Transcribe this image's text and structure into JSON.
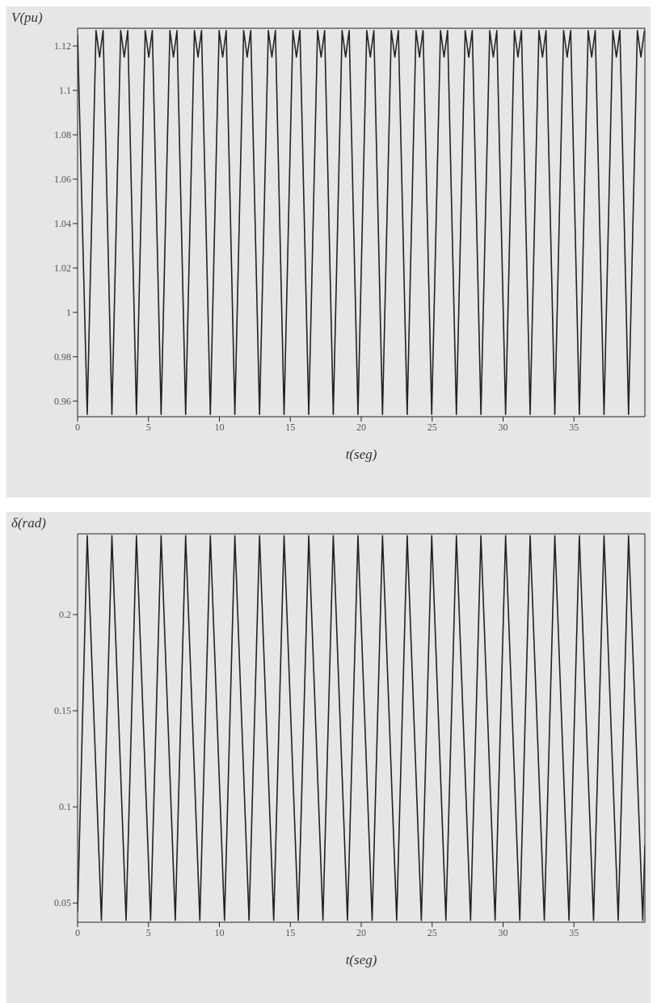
{
  "chart_data": [
    {
      "type": "line",
      "xlabel": "t(seg)",
      "ylabel": "V(pu)",
      "xlim": [
        0,
        40
      ],
      "xticks": [
        0,
        5,
        10,
        15,
        20,
        25,
        30,
        35
      ],
      "ylim": [
        0.953,
        1.128
      ],
      "yticks": [
        0.96,
        0.98,
        1,
        1.02,
        1.04,
        1.06,
        1.08,
        1.1,
        1.12
      ],
      "series": [
        {
          "color": "#222222",
          "x": [
            0,
            0.68,
            1.3,
            1.55,
            1.8,
            2.42,
            3.04,
            3.29,
            3.54,
            4.15,
            4.77,
            5.02,
            5.27,
            5.89,
            6.51,
            6.76,
            7.01,
            7.62,
            8.24,
            8.49,
            8.74,
            9.36,
            9.98,
            10.23,
            10.48,
            11.09,
            11.71,
            11.96,
            12.21,
            12.83,
            13.45,
            13.7,
            13.95,
            14.56,
            15.18,
            15.43,
            15.68,
            16.3,
            16.92,
            17.17,
            17.42,
            18.03,
            18.65,
            18.9,
            19.15,
            19.77,
            20.39,
            20.64,
            20.89,
            21.5,
            22.12,
            22.37,
            22.62,
            23.24,
            23.86,
            24.11,
            24.36,
            24.97,
            25.59,
            25.84,
            26.09,
            26.71,
            27.33,
            27.58,
            27.83,
            28.44,
            29.06,
            29.31,
            29.56,
            30.18,
            30.8,
            31.05,
            31.3,
            31.91,
            32.53,
            32.78,
            33.03,
            33.65,
            34.27,
            34.52,
            34.77,
            35.38,
            36.0,
            36.25,
            36.5,
            37.12,
            37.74,
            37.99,
            38.24,
            38.85,
            39.47,
            39.72,
            39.97
          ],
          "values": [
            1.125,
            0.954,
            1.127,
            1.115,
            1.127,
            0.954,
            1.127,
            1.115,
            1.127,
            0.954,
            1.127,
            1.115,
            1.127,
            0.954,
            1.127,
            1.115,
            1.127,
            0.954,
            1.127,
            1.115,
            1.127,
            0.954,
            1.127,
            1.115,
            1.127,
            0.954,
            1.127,
            1.115,
            1.127,
            0.954,
            1.127,
            1.115,
            1.127,
            0.954,
            1.127,
            1.115,
            1.127,
            0.954,
            1.127,
            1.115,
            1.127,
            0.954,
            1.127,
            1.115,
            1.127,
            0.954,
            1.127,
            1.115,
            1.127,
            0.954,
            1.127,
            1.115,
            1.127,
            0.954,
            1.127,
            1.115,
            1.127,
            0.954,
            1.127,
            1.115,
            1.127,
            0.954,
            1.127,
            1.115,
            1.127,
            0.954,
            1.127,
            1.115,
            1.127,
            0.954,
            1.127,
            1.115,
            1.127,
            0.954,
            1.127,
            1.115,
            1.127,
            0.954,
            1.127,
            1.115,
            1.127,
            0.954,
            1.127,
            1.115,
            1.127,
            0.954,
            1.127,
            1.115,
            1.127,
            0.954,
            1.127,
            1.115,
            1.127
          ]
        }
      ]
    },
    {
      "type": "line",
      "xlabel": "t(seg)",
      "ylabel": "δ(rad)",
      "xlim": [
        0,
        40
      ],
      "xticks": [
        0,
        5,
        10,
        15,
        20,
        25,
        30,
        35
      ],
      "ylim": [
        0.04,
        0.242
      ],
      "yticks": [
        0.05,
        0.1,
        0.15,
        0.2
      ],
      "series": [
        {
          "color": "#222222",
          "x": [
            0,
            0.68,
            1.68,
            2.42,
            3.42,
            4.15,
            5.15,
            5.89,
            6.89,
            7.62,
            8.62,
            9.36,
            10.36,
            11.09,
            12.09,
            12.83,
            13.83,
            14.56,
            15.56,
            16.3,
            17.3,
            18.03,
            19.03,
            19.77,
            20.77,
            21.5,
            22.5,
            23.24,
            24.24,
            24.97,
            25.97,
            26.71,
            27.71,
            28.44,
            29.44,
            30.18,
            31.18,
            31.91,
            32.91,
            33.65,
            34.65,
            35.38,
            36.38,
            37.12,
            38.12,
            38.85,
            39.85,
            40
          ],
          "values": [
            0.045,
            0.241,
            0.041,
            0.241,
            0.041,
            0.241,
            0.041,
            0.241,
            0.041,
            0.241,
            0.041,
            0.241,
            0.041,
            0.241,
            0.041,
            0.241,
            0.041,
            0.241,
            0.041,
            0.241,
            0.041,
            0.241,
            0.041,
            0.241,
            0.041,
            0.241,
            0.041,
            0.241,
            0.041,
            0.241,
            0.041,
            0.241,
            0.041,
            0.241,
            0.041,
            0.241,
            0.041,
            0.241,
            0.041,
            0.241,
            0.041,
            0.241,
            0.041,
            0.241,
            0.041,
            0.241,
            0.041,
            0.08
          ]
        }
      ]
    }
  ]
}
